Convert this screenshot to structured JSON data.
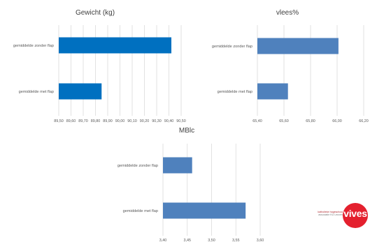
{
  "chart_data": [
    {
      "type": "bar",
      "orientation": "horizontal",
      "title": "Gewicht (kg)",
      "categories": [
        "gemiddelde zonder flap",
        "gemiddelde met flap"
      ],
      "values": [
        90.42,
        89.85
      ],
      "xlim": [
        89.5,
        90.5
      ],
      "xticks": [
        "89,50",
        "89,60",
        "89,70",
        "89,80",
        "89,90",
        "90,00",
        "90,10",
        "90,20",
        "90,30",
        "90,40",
        "90,50"
      ],
      "grid": true,
      "color": "#0070c0"
    },
    {
      "type": "bar",
      "orientation": "horizontal",
      "title": "vlees%",
      "categories": [
        "gemiddelde zonder flap",
        "gemiddelde met flap"
      ],
      "values": [
        66.01,
        65.63
      ],
      "xlim": [
        65.4,
        66.2
      ],
      "xticks": [
        "65,40",
        "65,60",
        "65,80",
        "66,00",
        "66,20"
      ],
      "grid": true,
      "color": "#4f81bd"
    },
    {
      "type": "bar",
      "orientation": "horizontal",
      "title": "MBlc",
      "categories": [
        "gemiddelde zonder flap",
        "gemiddelde met flap"
      ],
      "values": [
        3.46,
        3.57
      ],
      "xlim": [
        3.4,
        3.6
      ],
      "xticks": [
        "3,40",
        "3,45",
        "3,50",
        "3,55",
        "3,60"
      ],
      "grid": true,
      "color": "#4f81bd"
    }
  ],
  "logo": {
    "line1": "katholieke hogeschool",
    "line2": "associatie KU Leuven",
    "word": "vives"
  }
}
